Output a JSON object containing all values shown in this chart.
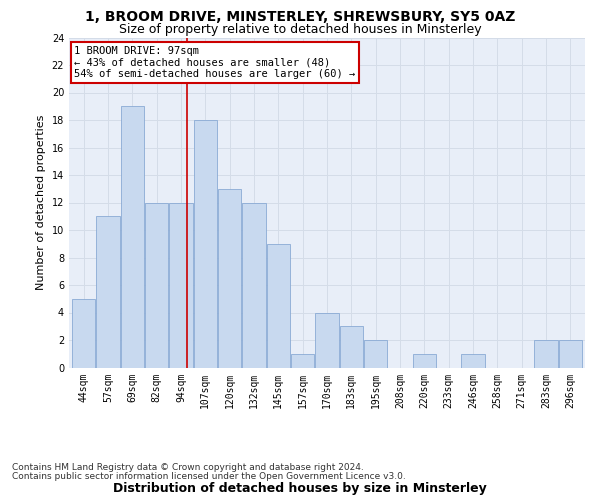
{
  "title": "1, BROOM DRIVE, MINSTERLEY, SHREWSBURY, SY5 0AZ",
  "subtitle": "Size of property relative to detached houses in Minsterley",
  "xlabel_bottom": "Distribution of detached houses by size in Minsterley",
  "ylabel": "Number of detached properties",
  "categories": [
    "44sqm",
    "57sqm",
    "69sqm",
    "82sqm",
    "94sqm",
    "107sqm",
    "120sqm",
    "132sqm",
    "145sqm",
    "157sqm",
    "170sqm",
    "183sqm",
    "195sqm",
    "208sqm",
    "220sqm",
    "233sqm",
    "246sqm",
    "258sqm",
    "271sqm",
    "283sqm",
    "296sqm"
  ],
  "values": [
    5,
    11,
    19,
    12,
    12,
    18,
    13,
    12,
    9,
    1,
    4,
    3,
    2,
    0,
    1,
    0,
    1,
    0,
    0,
    2,
    2
  ],
  "bar_color": "#c8d9ef",
  "bar_edge_color": "#8aaad4",
  "property_size_label": "97sqm",
  "property_bin_index": 5,
  "vline_color": "#cc0000",
  "annotation_text_line1": "1 BROOM DRIVE: 97sqm",
  "annotation_text_line2": "← 43% of detached houses are smaller (48)",
  "annotation_text_line3": "54% of semi-detached houses are larger (60) →",
  "annotation_box_color": "#ffffff",
  "annotation_box_edge": "#cc0000",
  "ylim": [
    0,
    24
  ],
  "yticks": [
    0,
    2,
    4,
    6,
    8,
    10,
    12,
    14,
    16,
    18,
    20,
    22,
    24
  ],
  "grid_color": "#d4dce8",
  "background_color": "#e8eef8",
  "footer_line1": "Contains HM Land Registry data © Crown copyright and database right 2024.",
  "footer_line2": "Contains public sector information licensed under the Open Government Licence v3.0.",
  "title_fontsize": 10,
  "subtitle_fontsize": 9,
  "ylabel_fontsize": 8,
  "xlabel_fontsize": 9,
  "tick_fontsize": 7,
  "annotation_fontsize": 7.5,
  "footer_fontsize": 6.5
}
